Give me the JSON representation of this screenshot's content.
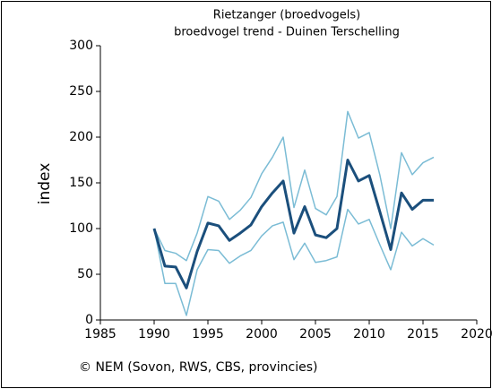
{
  "chart_data": {
    "type": "line",
    "title": "Rietzanger (broedvogels)",
    "subtitle": "broedvogel trend - Duinen Terschelling",
    "y_label": "index",
    "footer": "© NEM (Sovon, RWS, CBS, provincies)",
    "x": [
      1990,
      1991,
      1992,
      1993,
      1994,
      1995,
      1996,
      1997,
      1998,
      1999,
      2000,
      2001,
      2002,
      2003,
      2004,
      2005,
      2006,
      2007,
      2008,
      2009,
      2010,
      2011,
      2012,
      2013,
      2014,
      2015,
      2016
    ],
    "series": [
      {
        "color": "#7bbcd5",
        "width": 1.5,
        "values": [
          100,
          76,
          73,
          65,
          95,
          135,
          130,
          110,
          120,
          134,
          160,
          178,
          200,
          123,
          164,
          122,
          115,
          135,
          228,
          199,
          205,
          158,
          100,
          183,
          159,
          172,
          178
        ]
      },
      {
        "color": "#7bbcd5",
        "width": 1.5,
        "values": [
          100,
          40,
          40,
          5,
          55,
          77,
          76,
          62,
          70,
          76,
          92,
          103,
          107,
          66,
          84,
          63,
          65,
          69,
          121,
          105,
          110,
          82,
          55,
          96,
          81,
          89,
          82
        ]
      },
      {
        "color": "#1b4f7c",
        "width": 3,
        "values": [
          100,
          59,
          58,
          35,
          75,
          106,
          103,
          87,
          95,
          104,
          124,
          139,
          152,
          95,
          124,
          93,
          90,
          100,
          175,
          152,
          158,
          118,
          77,
          139,
          121,
          131,
          131
        ]
      }
    ],
    "xlim": [
      1985,
      2020
    ],
    "xticks": [
      1985,
      1990,
      1995,
      2000,
      2005,
      2010,
      2015,
      2020
    ],
    "ylim": [
      0,
      300
    ],
    "yticks": [
      0,
      50,
      100,
      150,
      200,
      250,
      300
    ]
  }
}
